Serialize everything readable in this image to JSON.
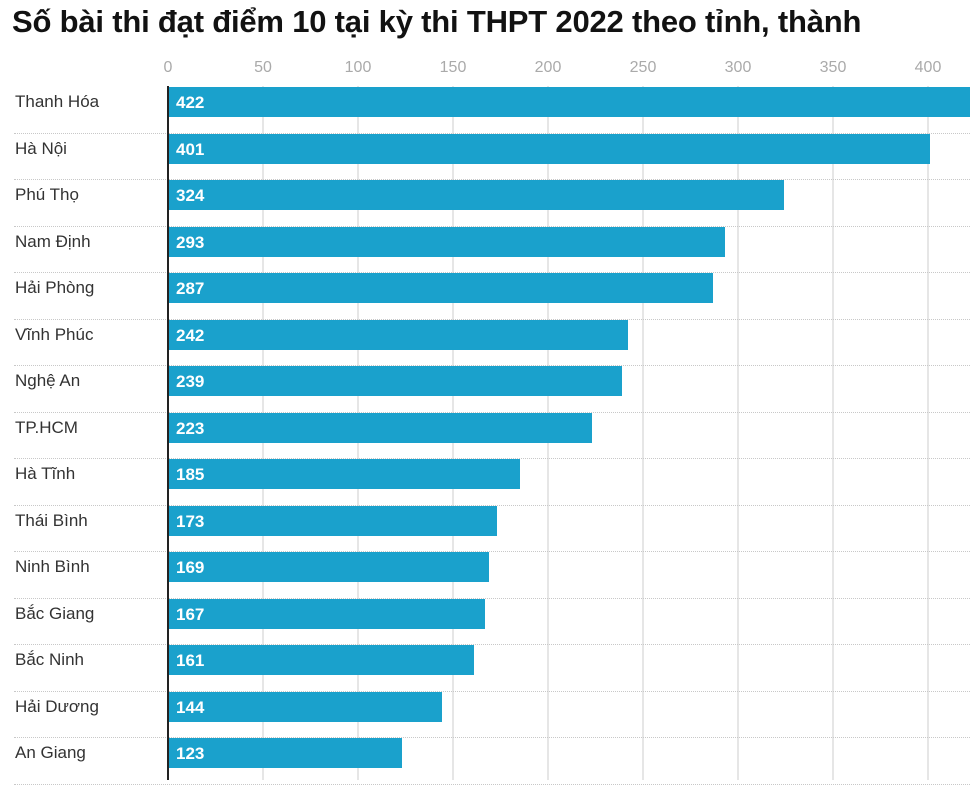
{
  "chart_data": {
    "type": "bar",
    "orientation": "horizontal",
    "title": "Số bài thi đạt điểm 10 tại kỳ thi THPT 2022 theo tỉnh, thành",
    "xlabel": "",
    "ylabel": "",
    "xlim": [
      0,
      422
    ],
    "x_ticks": [
      "0",
      "50",
      "100",
      "150",
      "200",
      "250",
      "300",
      "350",
      "400"
    ],
    "x_tick_values": [
      0,
      50,
      100,
      150,
      200,
      250,
      300,
      350,
      400
    ],
    "grid": true,
    "legend": null,
    "bar_color": "#1aa1cc",
    "categories": [
      "Thanh Hóa",
      "Hà Nội",
      "Phú Thọ",
      "Nam Định",
      "Hải Phòng",
      "Vĩnh Phúc",
      "Nghệ An",
      "TP.HCM",
      "Hà Tĩnh",
      "Thái Bình",
      "Ninh Bình",
      "Bắc Giang",
      "Bắc Ninh",
      "Hải Dương",
      "An Giang"
    ],
    "values": [
      422,
      401,
      324,
      293,
      287,
      242,
      239,
      223,
      185,
      173,
      169,
      167,
      161,
      144,
      123
    ]
  },
  "title": "Số bài thi đạt điểm 10 tại kỳ thi THPT 2022 theo tỉnh, thành",
  "colors": {
    "bar": "#1aa1cc",
    "grid": "#e6e6e6",
    "axis": "#222222",
    "tick_text": "#aaaaaa",
    "label_text": "#333333"
  }
}
